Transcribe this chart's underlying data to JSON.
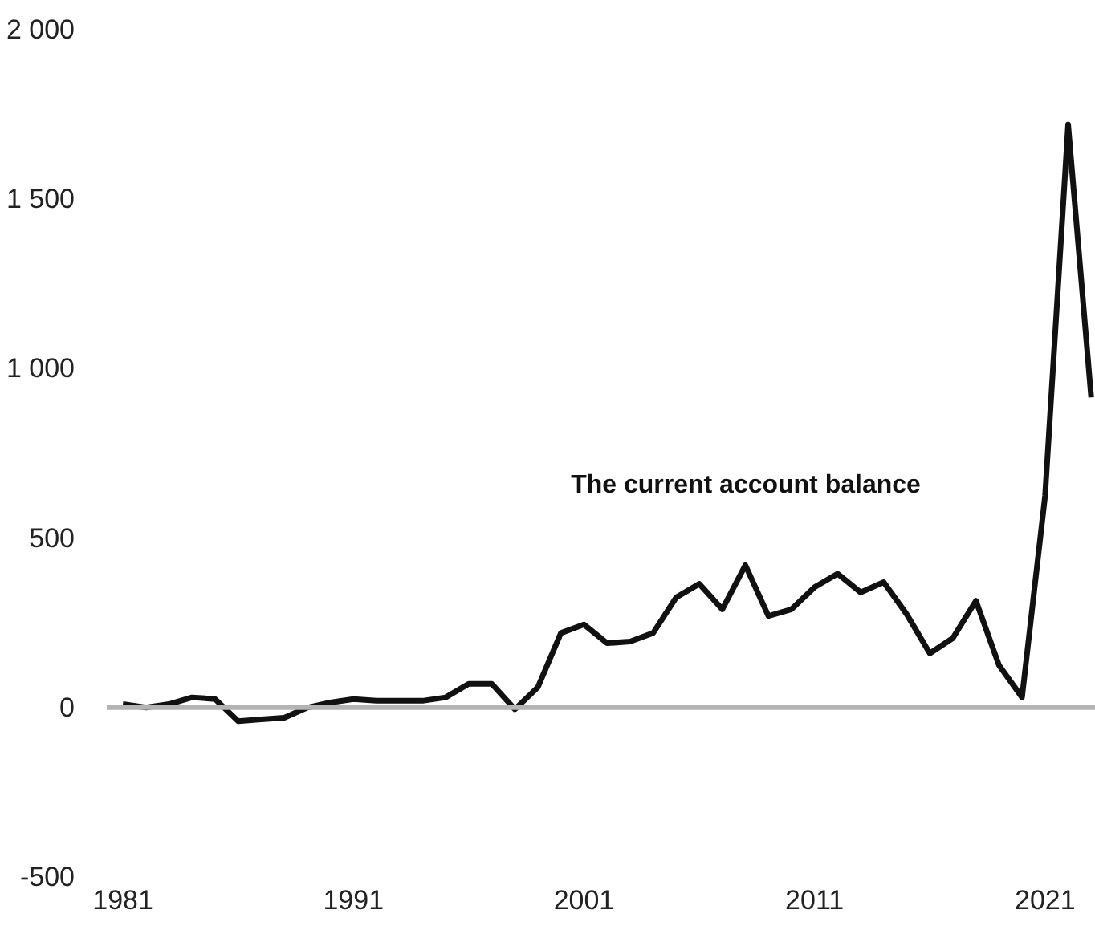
{
  "chart_data": {
    "type": "line",
    "x": [
      1981,
      1982,
      1983,
      1984,
      1985,
      1986,
      1987,
      1988,
      1989,
      1990,
      1991,
      1992,
      1993,
      1994,
      1995,
      1996,
      1997,
      1998,
      1999,
      2000,
      2001,
      2002,
      2003,
      2004,
      2005,
      2006,
      2007,
      2008,
      2009,
      2010,
      2011,
      2012,
      2013,
      2014,
      2015,
      2016,
      2017,
      2018,
      2019,
      2020,
      2021,
      2022,
      2023
    ],
    "series": [
      {
        "color": "#111111",
        "values": [
          10,
          0,
          10,
          30,
          25,
          -40,
          -35,
          -30,
          0,
          15,
          25,
          20,
          20,
          20,
          30,
          70,
          70,
          -5,
          60,
          220,
          245,
          190,
          195,
          220,
          325,
          365,
          290,
          420,
          270,
          290,
          355,
          395,
          340,
          370,
          275,
          160,
          205,
          315,
          125,
          30,
          625,
          1720,
          915
        ]
      }
    ],
    "xlim": [
      1980.3,
      2023.2
    ],
    "ylim": [
      -500,
      2000
    ],
    "xticks": [
      1981,
      1991,
      2001,
      2011,
      2021
    ],
    "yticks": [
      {
        "value": -500,
        "label": "-500"
      },
      0,
      500,
      {
        "value": 1000,
        "label": "1 000"
      },
      {
        "value": 1500,
        "label": "1 500"
      },
      {
        "value": 2000,
        "label": "2 000"
      }
    ],
    "ref_lines": [
      {
        "axis": "y",
        "value": 0,
        "color": "#b3b3b3"
      }
    ],
    "annotations": [
      "The current account balance"
    ],
    "grid": false,
    "marker": "none",
    "line_style": "solid"
  }
}
